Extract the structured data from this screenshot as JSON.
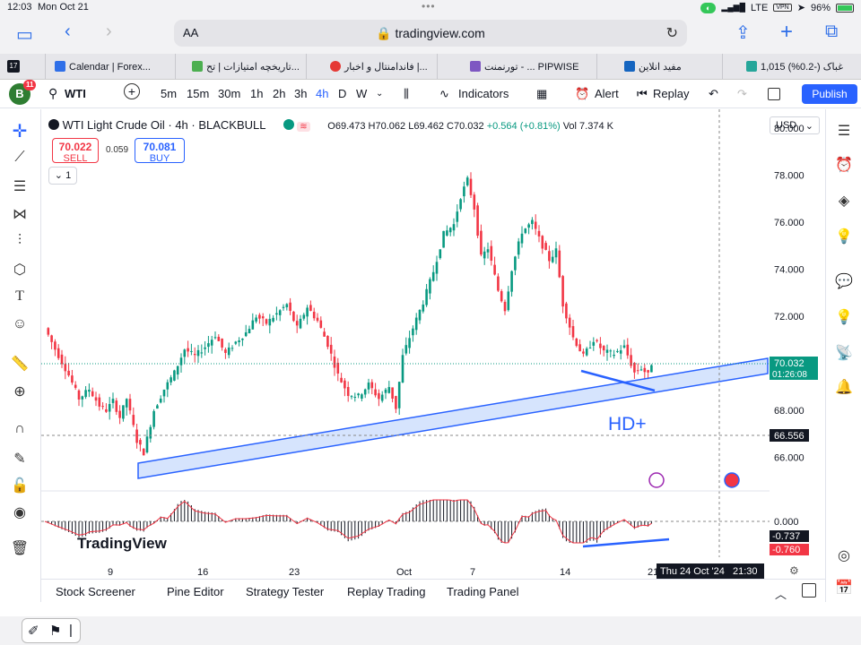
{
  "status": {
    "time": "12:03",
    "date": "Mon Oct 21",
    "network": "LTE",
    "vpn": "VPN",
    "battery": "96%"
  },
  "browser": {
    "aa": "AA",
    "url": "tradingview.com"
  },
  "tabs": [
    {
      "label": "Calendar | Forex...",
      "color": "#2f6fe8"
    },
    {
      "label": "تاریخچه امتیازات | تح...",
      "color": "#4caf50"
    },
    {
      "label": "فاندامنتال و اخبار |...",
      "color": "#e53935"
    },
    {
      "label": "تورنمنت - ... PIPWISE",
      "color": "#7e57c2"
    },
    {
      "label": "مفید انلاین",
      "color": "#1565c0"
    },
    {
      "label": "غباک (-0.2%) 1,015",
      "color": "#26a69a"
    }
  ],
  "toolbar": {
    "avatar": "B",
    "badge": "11",
    "symbol": "WTI",
    "intervals": [
      "5m",
      "15m",
      "30m",
      "1h",
      "2h",
      "3h",
      "4h",
      "D",
      "W"
    ],
    "active_interval": "4h",
    "indicators": "Indicators",
    "alert": "Alert",
    "replay": "Replay",
    "publish": "Publish"
  },
  "legend": {
    "title": "WTI Light Crude Oil · 4h · BLACKBULL",
    "open": "O69.473",
    "high": "H70.062",
    "low": "L69.462",
    "close": "C70.032",
    "change": "+0.564 (+0.81%)",
    "vol": "Vol 7.374 K"
  },
  "trade": {
    "sell_price": "70.022",
    "sell_label": "SELL",
    "spread": "0.059",
    "buy_price": "70.081",
    "buy_label": "BUY",
    "collapse_count": "1"
  },
  "currency": "USD",
  "price_labels": {
    "current": "70.032",
    "countdown": "01:26:08",
    "level": "66.556",
    "osc_a": "-0.737",
    "osc_b": "-0.760",
    "osc_zero": "0.000"
  },
  "annotation": "HD+",
  "watermark": "TradingView",
  "crosshair_date": "Thu 24 Oct '24   21:30",
  "colors": {
    "up": "#089981",
    "down": "#f23645",
    "channel": "#2962ff",
    "channel_fill": "#bbd2fb"
  },
  "chart_data": {
    "type": "candlestick",
    "y_ticks": [
      66,
      68,
      70,
      72,
      74,
      76,
      78,
      80
    ],
    "y_range": [
      64.8,
      80.8
    ],
    "x_ticks": [
      "9",
      "16",
      "23",
      "Oct",
      "7",
      "14",
      "21"
    ],
    "waypoints": [
      [
        0,
        71.5
      ],
      [
        3,
        70.6
      ],
      [
        7,
        69.5
      ],
      [
        10,
        68.5
      ],
      [
        13,
        68.9
      ],
      [
        16,
        68.2
      ],
      [
        18,
        68.0
      ],
      [
        20,
        68.4
      ],
      [
        22,
        67.7
      ],
      [
        24,
        68.5
      ],
      [
        27,
        66.7
      ],
      [
        29,
        66.2
      ],
      [
        32,
        68.0
      ],
      [
        35,
        68.9
      ],
      [
        38,
        69.6
      ],
      [
        41,
        70.6
      ],
      [
        44,
        70.3
      ],
      [
        47,
        70.7
      ],
      [
        50,
        71.2
      ],
      [
        53,
        70.4
      ],
      [
        56,
        70.9
      ],
      [
        59,
        71.3
      ],
      [
        62,
        72.0
      ],
      [
        65,
        71.7
      ],
      [
        68,
        72.1
      ],
      [
        71,
        72.5
      ],
      [
        74,
        71.5
      ],
      [
        77,
        72.4
      ],
      [
        80,
        71.8
      ],
      [
        83,
        70.8
      ],
      [
        86,
        69.5
      ],
      [
        89,
        68.7
      ],
      [
        92,
        68.6
      ],
      [
        95,
        69.1
      ],
      [
        98,
        68.5
      ],
      [
        101,
        69.0
      ],
      [
        103,
        68.1
      ],
      [
        105,
        70.3
      ],
      [
        108,
        71.5
      ],
      [
        111,
        72.6
      ],
      [
        114,
        73.9
      ],
      [
        117,
        75.5
      ],
      [
        120,
        75.9
      ],
      [
        122,
        77.1
      ],
      [
        124,
        77.8
      ],
      [
        126,
        76.6
      ],
      [
        128,
        74.5
      ],
      [
        130,
        74.9
      ],
      [
        133,
        73.1
      ],
      [
        135,
        72.3
      ],
      [
        137,
        74.0
      ],
      [
        140,
        75.6
      ],
      [
        143,
        76.0
      ],
      [
        145,
        75.3
      ],
      [
        148,
        74.4
      ],
      [
        150,
        74.8
      ],
      [
        152,
        72.5
      ],
      [
        155,
        71.1
      ],
      [
        158,
        70.3
      ],
      [
        161,
        71.0
      ],
      [
        164,
        70.5
      ],
      [
        167,
        70.4
      ],
      [
        170,
        70.7
      ],
      [
        173,
        69.6
      ],
      [
        175,
        69.8
      ],
      [
        177,
        69.5
      ],
      [
        178,
        70.0
      ]
    ],
    "oscillator": {
      "zero": 0.0,
      "last_a": -0.737,
      "last_b": -0.76
    }
  }
}
